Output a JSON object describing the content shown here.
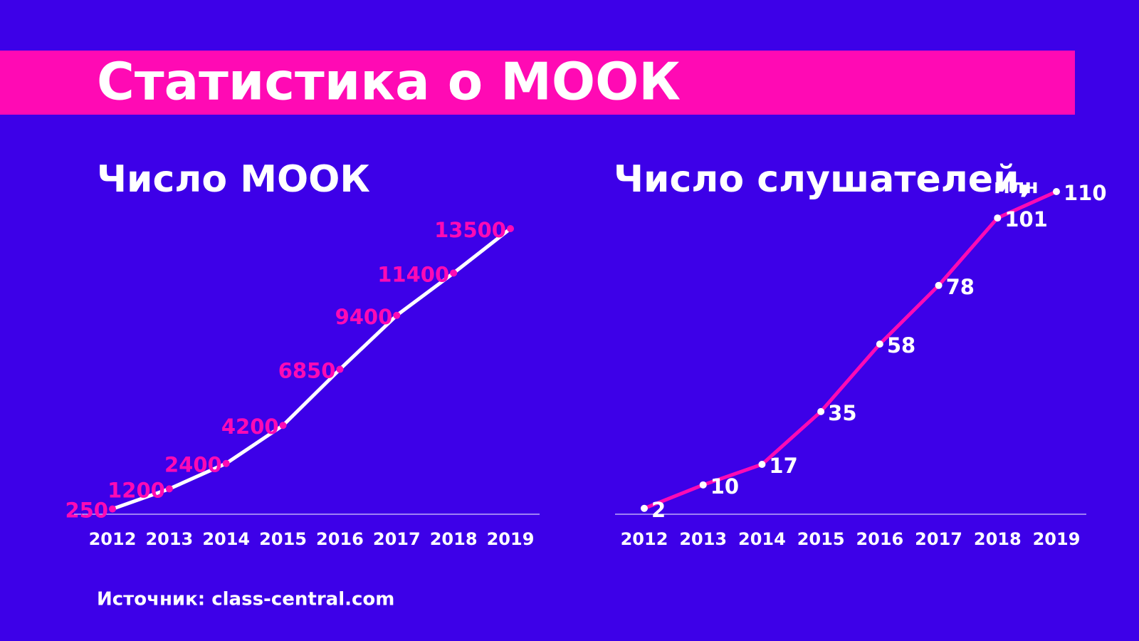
{
  "title": "Статистика о МООК",
  "source": "Источник: class-central.com",
  "chart_data": [
    {
      "type": "line",
      "title": "Число МООК",
      "categories": [
        "2012",
        "2013",
        "2014",
        "2015",
        "2016",
        "2017",
        "2018",
        "2019"
      ],
      "values": [
        250,
        1200,
        2400,
        4200,
        6850,
        9400,
        11400,
        13500
      ],
      "color": "#ffffff",
      "marker_color": "#ff0ab4",
      "label_color": "#ff0ab4",
      "label_side": "left",
      "ylim": [
        0,
        13500
      ]
    },
    {
      "type": "line",
      "title": "Число слушателей,",
      "subtitle": "млн",
      "categories": [
        "2012",
        "2013",
        "2014",
        "2015",
        "2016",
        "2017",
        "2018",
        "2019"
      ],
      "values": [
        2,
        10,
        17,
        35,
        58,
        78,
        101,
        110
      ],
      "color": "#ff0ab4",
      "marker_color": "#ffffff",
      "label_color": "#ffffff",
      "label_side": "right",
      "ylim": [
        0,
        110
      ]
    }
  ]
}
